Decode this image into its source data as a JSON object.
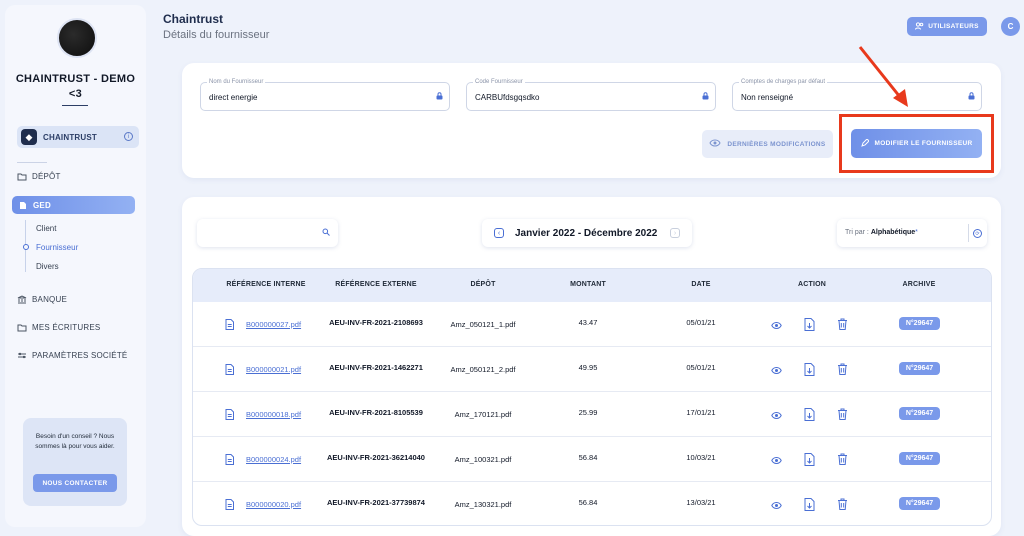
{
  "sidebar": {
    "company_line1": "CHAINTRUST - DEMO",
    "company_line2": "<3",
    "workspace_badge": "◆",
    "workspace_label": "CHAINTRUST",
    "nav": {
      "depot": "DÉPÔT",
      "ged": "GED",
      "sub_client": "Client",
      "sub_fournisseur": "Fournisseur",
      "sub_divers": "Divers",
      "banque": "BANQUE",
      "ecritures": "MES ÉCRITURES",
      "parametres": "PARAMÈTRES SOCIÉTÉ"
    },
    "help": {
      "text": "Besoin d'un conseil ? Nous sommes là pour vous aider.",
      "button": "NOUS CONTACTER"
    }
  },
  "header": {
    "title": "Chaintrust",
    "subtitle": "Détails du fournisseur",
    "users_button": "UTILISATEURS",
    "user_initial": "C"
  },
  "supplier": {
    "fields": [
      {
        "label": "Nom du Fournisseur",
        "value": "direct energie"
      },
      {
        "label": "Code Fournisseur",
        "value": "CARBUfdsgqsdko"
      },
      {
        "label": "Comptes de charges par défaut",
        "value": "Non renseigné"
      }
    ],
    "btn_history": "DERNIÈRES MODIFICATIONS",
    "btn_edit": "MODIFIER LE FOURNISSEUR"
  },
  "filters": {
    "search_placeholder": "",
    "period": "Janvier 2022 - Décembre 2022",
    "sort_label": "Tri par :",
    "sort_value": "Alphabétique",
    "sort_marker": "*"
  },
  "table": {
    "headers": [
      "RÉFÉRENCE INTERNE",
      "RÉFÉRENCE EXTERNE",
      "DÉPÔT",
      "MONTANT",
      "DATE",
      "ACTION",
      "ARCHIVE"
    ],
    "rows": [
      {
        "ref": "B000000027.pdf",
        "ext": "AEU-INV-FR-2021-2108693",
        "depot": "Amz_050121_1.pdf",
        "montant": "43.47",
        "date": "05/01/21",
        "archive": "N°29647"
      },
      {
        "ref": "B000000021.pdf",
        "ext": "AEU-INV-FR-2021-1462271",
        "depot": "Amz_050121_2.pdf",
        "montant": "49.95",
        "date": "05/01/21",
        "archive": "N°29647"
      },
      {
        "ref": "B000000018.pdf",
        "ext": "AEU-INV-FR-2021-8105539",
        "depot": "Amz_170121.pdf",
        "montant": "25.99",
        "date": "17/01/21",
        "archive": "N°29647"
      },
      {
        "ref": "B000000024.pdf",
        "ext": "AEU-INV-FR-2021-36214040",
        "depot": "Amz_100321.pdf",
        "montant": "56.84",
        "date": "10/03/21",
        "archive": "N°29647"
      },
      {
        "ref": "B000000020.pdf",
        "ext": "AEU-INV-FR-2021-37739874",
        "depot": "Amz_130321.pdf",
        "montant": "56.84",
        "date": "13/03/21",
        "archive": "N°29647"
      }
    ]
  },
  "colors": {
    "accent": "#7a99ea",
    "link": "#4a6fd4",
    "highlight": "#e8391c"
  }
}
